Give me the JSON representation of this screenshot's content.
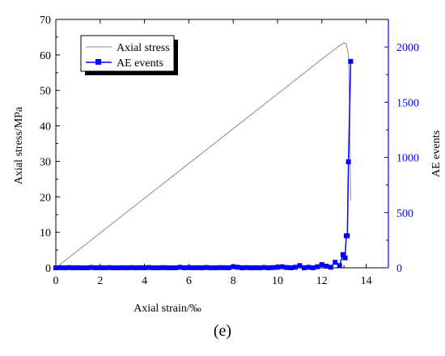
{
  "panel_label": "(e)",
  "chart_data": {
    "type": "line",
    "xlabel": "Axial strain/‰",
    "ylabel_left": "Axial stress/MPa",
    "ylabel_right": "AE events",
    "xlim": [
      0,
      15
    ],
    "ylim_left": [
      0,
      70
    ],
    "ylim_right": [
      0,
      2250
    ],
    "x_ticks": [
      0,
      2,
      4,
      6,
      8,
      10,
      12,
      14
    ],
    "y_ticks_left": [
      0,
      10,
      20,
      30,
      40,
      50,
      60,
      70
    ],
    "y_ticks_right": [
      0,
      500,
      1000,
      1500,
      2000
    ],
    "legend_position": "top-left",
    "colors": {
      "stress": "#8c8c8c",
      "ae": "#0000ff",
      "right_axis": "#0000ff"
    },
    "series": [
      {
        "name": "Axial stress",
        "axis": "left",
        "x": [
          0,
          2,
          4,
          6,
          8,
          10,
          11,
          12,
          12.5,
          12.8,
          13.0,
          13.1,
          13.2,
          13.25,
          13.3
        ],
        "y": [
          0,
          9.8,
          19.6,
          29.4,
          39.2,
          49.0,
          53.9,
          58.8,
          61.2,
          62.6,
          63.4,
          63.1,
          60.0,
          45.0,
          19.0
        ]
      },
      {
        "name": "AE events",
        "axis": "right",
        "marker": "square",
        "x": [
          0.0,
          0.2,
          0.4,
          0.6,
          0.8,
          1.0,
          1.2,
          1.4,
          1.6,
          1.8,
          2.0,
          2.2,
          2.4,
          2.6,
          2.8,
          3.0,
          3.2,
          3.4,
          3.6,
          3.8,
          4.0,
          4.2,
          4.4,
          4.6,
          4.8,
          5.0,
          5.2,
          5.4,
          5.6,
          5.8,
          6.0,
          6.2,
          6.4,
          6.6,
          6.8,
          7.0,
          7.2,
          7.4,
          7.6,
          7.8,
          8.0,
          8.2,
          8.4,
          8.6,
          8.8,
          9.0,
          9.2,
          9.4,
          9.6,
          9.8,
          10.0,
          10.2,
          10.4,
          10.6,
          10.8,
          11.0,
          11.2,
          11.4,
          11.6,
          11.8,
          12.0,
          12.2,
          12.4,
          12.6,
          12.8,
          12.95,
          13.05,
          13.1,
          13.15,
          13.2,
          13.3
        ],
        "y": [
          0,
          1,
          0,
          2,
          0,
          1,
          0,
          0,
          3,
          0,
          1,
          0,
          2,
          0,
          0,
          1,
          0,
          2,
          0,
          1,
          0,
          3,
          0,
          0,
          2,
          1,
          0,
          0,
          5,
          0,
          2,
          0,
          1,
          0,
          3,
          0,
          0,
          2,
          1,
          0,
          10,
          5,
          0,
          2,
          0,
          1,
          0,
          3,
          0,
          2,
          5,
          10,
          3,
          0,
          5,
          20,
          0,
          5,
          0,
          10,
          30,
          15,
          5,
          50,
          20,
          120,
          90,
          290,
          290,
          960,
          1870
        ]
      }
    ]
  }
}
